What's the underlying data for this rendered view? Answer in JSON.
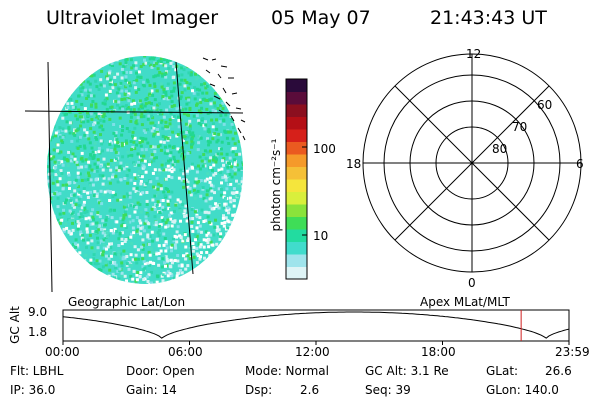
{
  "header": {
    "title": "Ultraviolet Imager",
    "date": "05 May 07",
    "time": "21:43:43 UT"
  },
  "colorbar": {
    "unit": "photon cm⁻²s⁻¹",
    "ticks": [
      "100",
      "10"
    ],
    "colors": [
      "#dff4f6",
      "#9fe4ec",
      "#41dccc",
      "#22dca0",
      "#3fdd57",
      "#8ae33b",
      "#d9ef3c",
      "#f5e53c",
      "#f5c037",
      "#f59a2a",
      "#ea5a20",
      "#d6201a",
      "#b40f16",
      "#8b0f1f",
      "#5a0c3a",
      "#2a0a3a"
    ]
  },
  "polar": {
    "mlt_labels": [
      "12",
      "18",
      "6",
      "0"
    ],
    "lat_labels": [
      "60",
      "70",
      "80"
    ]
  },
  "labels": {
    "left": "Geographic Lat/Lon",
    "right": "Apex MLat/MLT"
  },
  "altplot": {
    "ylabel": "GC Alt",
    "yticks": [
      "9.0",
      "1.8"
    ],
    "xticks": [
      "00:00",
      "06:00",
      "12:00",
      "18:00",
      "23:59"
    ],
    "marker_hours": 21.73
  },
  "info": {
    "flt": "Flt: LBHL",
    "ip": "IP: 36.0",
    "door": "Door: Open",
    "gain": "Gain: 14",
    "mode": "Mode: Normal",
    "dsp_label": "Dsp:",
    "dsp_value": "2.6",
    "gcalt": "GC Alt: 3.1 Re",
    "seq": "Seq: 39",
    "glat_label": "GLat:",
    "glat_value": "26.6",
    "glon": "GLon: 140.0"
  }
}
